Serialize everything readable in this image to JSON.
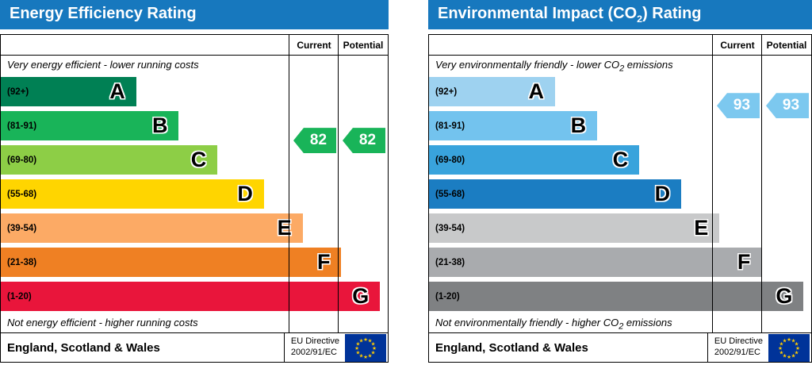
{
  "charts": [
    {
      "title_pre": "Energy Efficiency Rating",
      "title_sub": "",
      "title_post": "",
      "header_bg": "#1778be",
      "columns": {
        "current": "Current",
        "potential": "Potential"
      },
      "top_note": {
        "pre": "Very energy efficient - lower running costs",
        "sub": "",
        "post": ""
      },
      "bottom_note": {
        "pre": "Not energy efficient - higher running costs",
        "sub": "",
        "post": ""
      },
      "bands": [
        {
          "letter": "A",
          "range": "(92+)",
          "lo": 92,
          "hi": 100,
          "color": "#008054",
          "width_pct": 35
        },
        {
          "letter": "B",
          "range": "(81-91)",
          "lo": 81,
          "hi": 91,
          "color": "#19b459",
          "width_pct": 46
        },
        {
          "letter": "C",
          "range": "(69-80)",
          "lo": 69,
          "hi": 80,
          "color": "#8dce46",
          "width_pct": 56
        },
        {
          "letter": "D",
          "range": "(55-68)",
          "lo": 55,
          "hi": 68,
          "color": "#ffd500",
          "width_pct": 68
        },
        {
          "letter": "E",
          "range": "(39-54)",
          "lo": 39,
          "hi": 54,
          "color": "#fcaa65",
          "width_pct": 78
        },
        {
          "letter": "F",
          "range": "(21-38)",
          "lo": 21,
          "hi": 38,
          "color": "#ef8023",
          "width_pct": 88
        },
        {
          "letter": "G",
          "range": "(1-20)",
          "lo": 1,
          "hi": 20,
          "color": "#e9153b",
          "width_pct": 98
        }
      ],
      "current": {
        "value": 82,
        "color": "#19b459"
      },
      "potential": {
        "value": 82,
        "color": "#19b459"
      },
      "footer": {
        "region": "England, Scotland & Wales",
        "directive_line1": "EU Directive",
        "directive_line2": "2002/91/EC"
      }
    },
    {
      "title_pre": "Environmental Impact (CO",
      "title_sub": "2",
      "title_post": ") Rating",
      "header_bg": "#1778be",
      "columns": {
        "current": "Current",
        "potential": "Potential"
      },
      "top_note": {
        "pre": "Very environmentally friendly - lower CO",
        "sub": "2",
        "post": " emissions"
      },
      "bottom_note": {
        "pre": "Not environmentally friendly - higher CO",
        "sub": "2",
        "post": " emissions"
      },
      "bands": [
        {
          "letter": "A",
          "range": "(92+)",
          "lo": 92,
          "hi": 100,
          "color": "#9ed2f0",
          "width_pct": 33
        },
        {
          "letter": "B",
          "range": "(81-91)",
          "lo": 81,
          "hi": 91,
          "color": "#73c3ee",
          "width_pct": 44
        },
        {
          "letter": "C",
          "range": "(69-80)",
          "lo": 69,
          "hi": 80,
          "color": "#39a3dc",
          "width_pct": 55
        },
        {
          "letter": "D",
          "range": "(55-68)",
          "lo": 55,
          "hi": 68,
          "color": "#1b7dc2",
          "width_pct": 66
        },
        {
          "letter": "E",
          "range": "(39-54)",
          "lo": 39,
          "hi": 54,
          "color": "#c8c9ca",
          "width_pct": 76
        },
        {
          "letter": "F",
          "range": "(21-38)",
          "lo": 21,
          "hi": 38,
          "color": "#a9abae",
          "width_pct": 87
        },
        {
          "letter": "G",
          "range": "(1-20)",
          "lo": 1,
          "hi": 20,
          "color": "#7f8183",
          "width_pct": 98
        }
      ],
      "current": {
        "value": 93,
        "color": "#7cc8ef"
      },
      "potential": {
        "value": 93,
        "color": "#7cc8ef"
      },
      "footer": {
        "region": "England, Scotland & Wales",
        "directive_line1": "EU Directive",
        "directive_line2": "2002/91/EC"
      }
    }
  ],
  "eu_flag": {
    "bg": "#003399",
    "star": "#ffcc00",
    "star_glyph": "★"
  },
  "chart_data": [
    {
      "type": "bar",
      "title": "Energy Efficiency Rating",
      "categories": [
        "A (92+)",
        "B (81-91)",
        "C (69-80)",
        "D (55-68)",
        "E (39-54)",
        "F (21-38)",
        "G (1-20)"
      ],
      "band_ranges": [
        [
          92,
          100
        ],
        [
          81,
          91
        ],
        [
          69,
          80
        ],
        [
          55,
          68
        ],
        [
          39,
          54
        ],
        [
          21,
          38
        ],
        [
          1,
          20
        ]
      ],
      "current": 82,
      "potential": 82,
      "current_band": "B",
      "potential_band": "B",
      "top_annotation": "Very energy efficient - lower running costs",
      "bottom_annotation": "Not energy efficient - higher running costs",
      "footer": "England, Scotland & Wales",
      "directive": "EU Directive 2002/91/EC"
    },
    {
      "type": "bar",
      "title": "Environmental Impact (CO2) Rating",
      "categories": [
        "A (92+)",
        "B (81-91)",
        "C (69-80)",
        "D (55-68)",
        "E (39-54)",
        "F (21-38)",
        "G (1-20)"
      ],
      "band_ranges": [
        [
          92,
          100
        ],
        [
          81,
          91
        ],
        [
          69,
          80
        ],
        [
          55,
          68
        ],
        [
          39,
          54
        ],
        [
          21,
          38
        ],
        [
          1,
          20
        ]
      ],
      "current": 93,
      "potential": 93,
      "current_band": "A",
      "potential_band": "A",
      "top_annotation": "Very environmentally friendly - lower CO2 emissions",
      "bottom_annotation": "Not environmentally friendly - higher CO2 emissions",
      "footer": "England, Scotland & Wales",
      "directive": "EU Directive 2002/91/EC"
    }
  ]
}
